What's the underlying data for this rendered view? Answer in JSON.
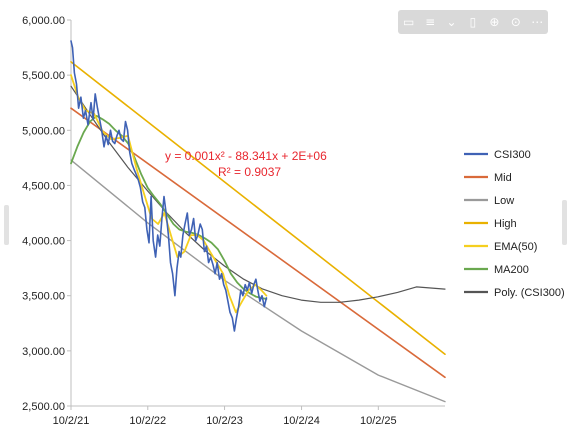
{
  "toolbar": {
    "icons": [
      "comment-icon",
      "filter-icon",
      "chevron-down-icon",
      "align-icon",
      "zoom-icon",
      "download-icon",
      "more-icon"
    ]
  },
  "chart_data": {
    "type": "line",
    "title": "",
    "xlabel": "",
    "ylabel": "",
    "x_ticks": [
      "10/2/21",
      "10/2/22",
      "10/2/23",
      "10/2/24",
      "10/2/25"
    ],
    "y_ticks": [
      "6,000.00",
      "5,500.00",
      "5,000.00",
      "4,500.00",
      "4,000.00",
      "3,500.00",
      "3,000.00",
      "2,500.00"
    ],
    "xlim": [
      "2021-10-02",
      "2026-08-15"
    ],
    "ylim": [
      2500,
      6000
    ],
    "grid": false,
    "legend_position": "right",
    "trendline_equation": "y = 0.001x² - 88.341x + 2E+06",
    "trendline_r2": "R² = 0.9037",
    "series": [
      {
        "name": "CSI300",
        "color": "#3f62b5",
        "points": [
          [
            "2021-10-02",
            5810
          ],
          [
            "2021-10-09",
            5750
          ],
          [
            "2021-10-18",
            5520
          ],
          [
            "2021-10-28",
            5420
          ],
          [
            "2021-11-07",
            5200
          ],
          [
            "2021-11-18",
            5300
          ],
          [
            "2021-11-30",
            5110
          ],
          [
            "2021-12-10",
            5180
          ],
          [
            "2021-12-22",
            5050
          ],
          [
            "2022-01-05",
            5250
          ],
          [
            "2022-01-15",
            5100
          ],
          [
            "2022-01-25",
            5330
          ],
          [
            "2022-02-05",
            5200
          ],
          [
            "2022-02-15",
            5100
          ],
          [
            "2022-02-25",
            5000
          ],
          [
            "2022-03-08",
            4850
          ],
          [
            "2022-03-18",
            4950
          ],
          [
            "2022-03-28",
            4870
          ],
          [
            "2022-04-08",
            5000
          ],
          [
            "2022-04-18",
            4900
          ],
          [
            "2022-04-28",
            4880
          ],
          [
            "2022-05-08",
            4950
          ],
          [
            "2022-05-18",
            5000
          ],
          [
            "2022-05-28",
            4920
          ],
          [
            "2022-06-08",
            4900
          ],
          [
            "2022-06-18",
            5080
          ],
          [
            "2022-06-28",
            5000
          ],
          [
            "2022-07-08",
            4800
          ],
          [
            "2022-07-18",
            4700
          ],
          [
            "2022-07-28",
            4650
          ],
          [
            "2022-08-08",
            4600
          ],
          [
            "2022-08-18",
            4550
          ],
          [
            "2022-08-28",
            4480
          ],
          [
            "2022-09-08",
            4350
          ],
          [
            "2022-09-18",
            4300
          ],
          [
            "2022-09-28",
            4100
          ],
          [
            "2022-10-08",
            3980
          ],
          [
            "2022-10-18",
            4400
          ],
          [
            "2022-10-28",
            4000
          ],
          [
            "2022-11-08",
            3850
          ],
          [
            "2022-11-18",
            4050
          ],
          [
            "2022-11-28",
            3950
          ],
          [
            "2022-12-08",
            4200
          ],
          [
            "2022-12-18",
            4400
          ],
          [
            "2022-12-28",
            4250
          ],
          [
            "2023-01-08",
            4050
          ],
          [
            "2023-01-18",
            3800
          ],
          [
            "2023-01-28",
            3700
          ],
          [
            "2023-02-08",
            3500
          ],
          [
            "2023-02-18",
            3750
          ],
          [
            "2023-02-28",
            3900
          ],
          [
            "2023-03-08",
            3850
          ],
          [
            "2023-03-18",
            4050
          ],
          [
            "2023-03-28",
            4150
          ],
          [
            "2023-04-08",
            4250
          ],
          [
            "2023-04-18",
            4050
          ],
          [
            "2023-04-28",
            4100
          ],
          [
            "2023-05-08",
            4200
          ],
          [
            "2023-05-18",
            4000
          ],
          [
            "2023-05-28",
            4050
          ],
          [
            "2023-06-08",
            4150
          ],
          [
            "2023-06-18",
            4100
          ],
          [
            "2023-06-28",
            3900
          ],
          [
            "2023-07-08",
            3950
          ],
          [
            "2023-07-18",
            3800
          ],
          [
            "2023-07-28",
            3850
          ],
          [
            "2023-08-08",
            3780
          ],
          [
            "2023-08-18",
            3700
          ],
          [
            "2023-08-28",
            3800
          ],
          [
            "2023-09-08",
            3650
          ],
          [
            "2023-09-18",
            3700
          ],
          [
            "2023-09-28",
            3600
          ],
          [
            "2023-10-08",
            3550
          ],
          [
            "2023-10-18",
            3450
          ],
          [
            "2023-10-28",
            3350
          ],
          [
            "2023-11-08",
            3300
          ],
          [
            "2023-11-18",
            3180
          ],
          [
            "2023-11-28",
            3300
          ],
          [
            "2023-12-08",
            3400
          ],
          [
            "2023-12-18",
            3550
          ],
          [
            "2023-12-28",
            3500
          ],
          [
            "2024-01-08",
            3600
          ],
          [
            "2024-01-18",
            3550
          ],
          [
            "2024-01-28",
            3620
          ],
          [
            "2024-02-08",
            3520
          ],
          [
            "2024-02-18",
            3600
          ],
          [
            "2024-02-28",
            3650
          ],
          [
            "2024-03-08",
            3550
          ],
          [
            "2024-03-18",
            3450
          ],
          [
            "2024-03-28",
            3500
          ],
          [
            "2024-04-08",
            3400
          ],
          [
            "2024-04-18",
            3480
          ]
        ]
      },
      {
        "name": "Mid",
        "color": "#d96a3a",
        "points": [
          [
            "2021-10-02",
            5200
          ],
          [
            "2026-08-15",
            2760
          ]
        ]
      },
      {
        "name": "Low",
        "color": "#9a9a9a",
        "points": [
          [
            "2021-10-02",
            4730
          ],
          [
            "2022-10-02",
            4160
          ],
          [
            "2023-10-02",
            3640
          ],
          [
            "2024-10-02",
            3180
          ],
          [
            "2025-10-02",
            2780
          ],
          [
            "2026-08-15",
            2540
          ]
        ]
      },
      {
        "name": "High",
        "color": "#e9b100",
        "points": [
          [
            "2021-10-02",
            5620
          ],
          [
            "2026-08-15",
            2970
          ]
        ]
      },
      {
        "name": "EMA(50)",
        "color": "#f5cf1f",
        "points": [
          [
            "2021-10-02",
            5500
          ],
          [
            "2021-11-05",
            5300
          ],
          [
            "2021-12-10",
            5180
          ],
          [
            "2022-01-20",
            5150
          ],
          [
            "2022-03-01",
            4990
          ],
          [
            "2022-04-10",
            4920
          ],
          [
            "2022-05-20",
            4930
          ],
          [
            "2022-06-30",
            4950
          ],
          [
            "2022-08-10",
            4650
          ],
          [
            "2022-09-15",
            4420
          ],
          [
            "2022-10-20",
            4200
          ],
          [
            "2022-11-20",
            4150
          ],
          [
            "2022-12-20",
            4250
          ],
          [
            "2023-01-20",
            4050
          ],
          [
            "2023-02-20",
            3850
          ],
          [
            "2023-03-25",
            3900
          ],
          [
            "2023-04-25",
            4050
          ],
          [
            "2023-05-25",
            4050
          ],
          [
            "2023-06-25",
            4000
          ],
          [
            "2023-07-25",
            3900
          ],
          [
            "2023-08-25",
            3800
          ],
          [
            "2023-09-25",
            3700
          ],
          [
            "2023-10-25",
            3500
          ],
          [
            "2023-11-25",
            3350
          ],
          [
            "2023-12-25",
            3450
          ],
          [
            "2024-01-25",
            3550
          ],
          [
            "2024-02-25",
            3600
          ],
          [
            "2024-03-25",
            3550
          ],
          [
            "2024-04-18",
            3500
          ]
        ]
      },
      {
        "name": "MA200",
        "color": "#6aa84f",
        "points": [
          [
            "2021-10-02",
            4700
          ],
          [
            "2021-11-01",
            4850
          ],
          [
            "2021-12-01",
            4980
          ],
          [
            "2022-01-01",
            5080
          ],
          [
            "2022-02-01",
            5130
          ],
          [
            "2022-03-01",
            5100
          ],
          [
            "2022-04-01",
            5060
          ],
          [
            "2022-05-01",
            5000
          ],
          [
            "2022-06-01",
            4950
          ],
          [
            "2022-07-01",
            4880
          ],
          [
            "2022-08-01",
            4750
          ],
          [
            "2022-09-01",
            4600
          ],
          [
            "2022-10-01",
            4480
          ],
          [
            "2022-11-01",
            4400
          ],
          [
            "2022-12-01",
            4330
          ],
          [
            "2023-01-01",
            4240
          ],
          [
            "2023-02-01",
            4150
          ],
          [
            "2023-03-01",
            4100
          ],
          [
            "2023-04-01",
            4080
          ],
          [
            "2023-05-01",
            4070
          ],
          [
            "2023-06-01",
            4050
          ],
          [
            "2023-07-01",
            4020
          ],
          [
            "2023-08-01",
            3980
          ],
          [
            "2023-09-01",
            3920
          ],
          [
            "2023-10-01",
            3820
          ],
          [
            "2023-11-01",
            3700
          ],
          [
            "2023-12-01",
            3620
          ],
          [
            "2024-01-01",
            3560
          ],
          [
            "2024-02-01",
            3520
          ],
          [
            "2024-03-01",
            3490
          ],
          [
            "2024-04-18",
            3470
          ]
        ]
      },
      {
        "name": "Poly. (CSI300)",
        "color": "#555555",
        "points": [
          [
            "2021-10-02",
            5400
          ],
          [
            "2022-01-01",
            5140
          ],
          [
            "2022-04-01",
            4890
          ],
          [
            "2022-07-01",
            4660
          ],
          [
            "2022-10-01",
            4450
          ],
          [
            "2023-01-01",
            4250
          ],
          [
            "2023-04-01",
            4070
          ],
          [
            "2023-07-01",
            3910
          ],
          [
            "2023-10-01",
            3770
          ],
          [
            "2024-01-01",
            3650
          ],
          [
            "2024-04-01",
            3560
          ],
          [
            "2024-07-01",
            3500
          ],
          [
            "2024-10-01",
            3460
          ],
          [
            "2025-01-01",
            3440
          ],
          [
            "2025-04-01",
            3440
          ],
          [
            "2025-07-01",
            3460
          ],
          [
            "2025-10-01",
            3490
          ],
          [
            "2026-01-01",
            3530
          ],
          [
            "2026-04-01",
            3580
          ],
          [
            "2026-08-15",
            3560
          ]
        ]
      }
    ]
  }
}
